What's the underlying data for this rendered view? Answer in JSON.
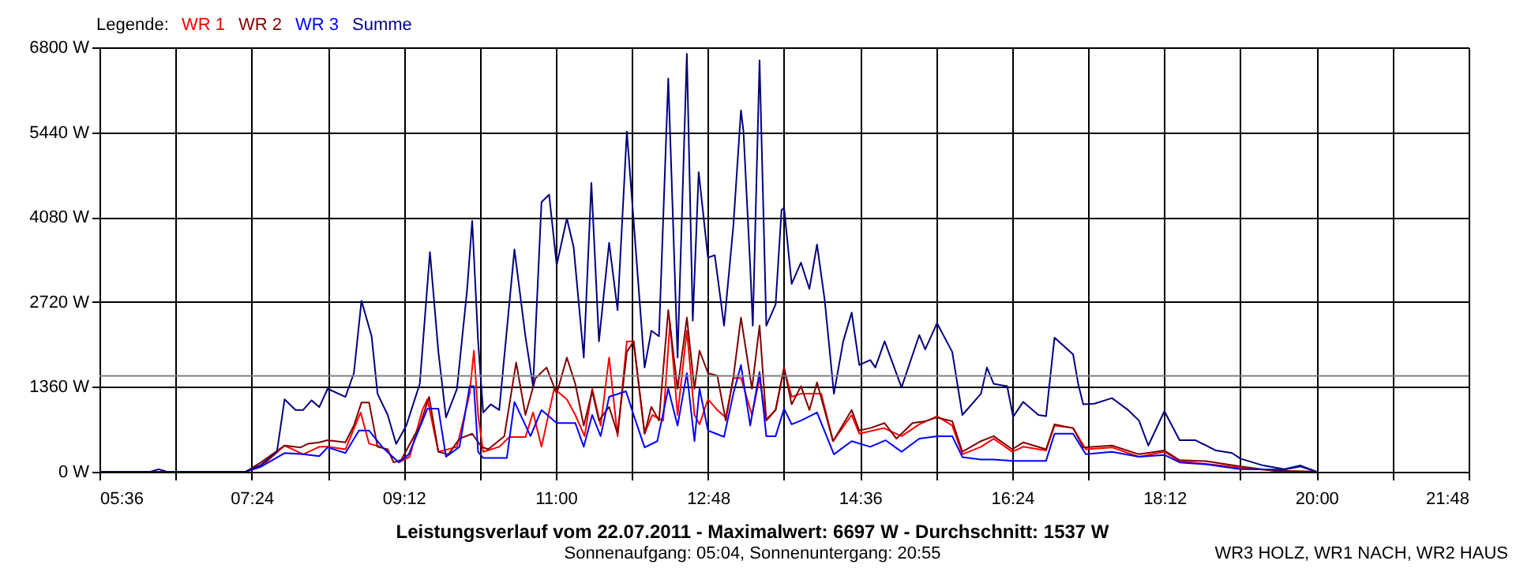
{
  "chart_data": {
    "type": "line",
    "title": "Leistungsverlauf vom 22.07.2011 - Maximalwert: 6697 W - Durchschnitt: 1537 W",
    "subtitle": "Sonnenaufgang: 05:04, Sonnenuntergang: 20:55",
    "legend_title": "Legende:",
    "annotations": [
      "WR3 HOLZ, WR1 NACH, WR2 HAUS"
    ],
    "series": [
      {
        "name": "WR 1",
        "color": "#ff0000",
        "x": [
          5.6,
          7.33,
          7.51,
          7.79,
          8.01,
          8.2,
          8.3,
          8.51,
          8.69,
          8.79,
          8.95,
          9.14,
          9.27,
          9.42,
          9.48,
          9.61,
          9.83,
          9.98,
          10.03,
          10.08,
          10.14,
          10.33,
          10.45,
          10.64,
          10.73,
          10.83,
          10.98,
          11.13,
          11.23,
          11.34,
          11.43,
          11.53,
          11.63,
          11.73,
          11.84,
          11.92,
          12.05,
          12.14,
          12.27,
          12.35,
          12.44,
          12.55,
          12.64,
          12.7,
          12.8,
          12.91,
          13.01,
          13.1,
          13.19,
          13.32,
          13.41,
          13.49,
          13.6,
          13.7,
          13.79,
          13.9,
          14.14,
          14.28,
          14.5,
          14.59,
          14.88,
          15.09,
          15.3,
          15.51,
          15.69,
          15.81,
          16.03,
          16.18,
          16.4,
          16.53,
          16.8,
          16.9,
          17.12,
          17.27,
          17.58,
          17.9,
          18.2,
          18.38,
          18.69,
          19.1,
          19.5,
          20.0
        ],
        "values": [
          0,
          0,
          80,
          420,
          280,
          400,
          400,
          360,
          950,
          450,
          390,
          150,
          240,
          990,
          1160,
          320,
          400,
          1250,
          1940,
          910,
          320,
          400,
          555,
          555,
          950,
          400,
          1330,
          1160,
          910,
          570,
          1330,
          740,
          1830,
          570,
          2090,
          2090,
          610,
          910,
          820,
          2380,
          910,
          2260,
          910,
          760,
          1160,
          990,
          870,
          1500,
          1500,
          910,
          1500,
          840,
          990,
          1650,
          1200,
          1250,
          1250,
          490,
          910,
          610,
          700,
          570,
          760,
          890,
          740,
          280,
          400,
          530,
          320,
          400,
          340,
          740,
          700,
          360,
          390,
          240,
          320,
          170,
          125,
          67,
          17,
          0
        ]
      },
      {
        "name": "WR 2",
        "color": "#800000",
        "x": [
          5.6,
          7.33,
          7.51,
          7.79,
          7.98,
          8.07,
          8.2,
          8.3,
          8.51,
          8.61,
          8.7,
          8.79,
          8.89,
          9.01,
          9.08,
          9.17,
          9.39,
          9.5,
          9.61,
          9.73,
          9.86,
          10.01,
          10.12,
          10.2,
          10.39,
          10.53,
          10.64,
          10.76,
          10.89,
          11.01,
          11.13,
          11.23,
          11.33,
          11.43,
          11.51,
          11.63,
          11.73,
          11.84,
          11.92,
          12.05,
          12.13,
          12.22,
          12.33,
          12.44,
          12.55,
          12.64,
          12.7,
          12.8,
          12.91,
          13.01,
          13.1,
          13.19,
          13.32,
          13.41,
          13.49,
          13.6,
          13.7,
          13.79,
          13.9,
          14.0,
          14.09,
          14.28,
          14.5,
          14.59,
          14.72,
          14.89,
          15.03,
          15.22,
          15.37,
          15.51,
          15.69,
          15.81,
          16.03,
          16.18,
          16.4,
          16.53,
          16.8,
          16.9,
          17.12,
          17.24,
          17.58,
          17.9,
          18.2,
          18.38,
          18.69,
          19.1,
          19.5,
          20.0
        ],
        "values": [
          0,
          0,
          150,
          420,
          390,
          450,
          470,
          505,
          470,
          740,
          1110,
          1110,
          400,
          360,
          150,
          190,
          740,
          1200,
          320,
          280,
          530,
          610,
          400,
          360,
          570,
          1750,
          910,
          1500,
          1670,
          1250,
          1830,
          1410,
          740,
          1290,
          820,
          1040,
          610,
          1920,
          2090,
          610,
          1040,
          820,
          2590,
          1330,
          2470,
          1330,
          1940,
          1580,
          1540,
          820,
          1510,
          2470,
          1330,
          2340,
          820,
          990,
          1670,
          1080,
          1370,
          990,
          1430,
          490,
          990,
          660,
          700,
          780,
          530,
          780,
          810,
          870,
          810,
          320,
          490,
          570,
          360,
          470,
          360,
          760,
          700,
          390,
          420,
          280,
          340,
          185,
          170,
          85,
          17,
          0
        ]
      },
      {
        "name": "WR 3",
        "color": "#0000ff",
        "x": [
          7.33,
          7.51,
          7.79,
          8.01,
          8.2,
          8.3,
          8.51,
          8.67,
          8.79,
          8.95,
          9.14,
          9.26,
          9.48,
          9.61,
          9.7,
          9.86,
          9.98,
          10.03,
          10.08,
          10.14,
          10.42,
          10.51,
          10.7,
          10.83,
          11.01,
          11.23,
          11.33,
          11.43,
          11.53,
          11.63,
          11.83,
          11.92,
          12.05,
          12.2,
          12.33,
          12.44,
          12.55,
          12.64,
          12.7,
          12.8,
          12.99,
          13.1,
          13.19,
          13.3,
          13.41,
          13.49,
          13.6,
          13.7,
          13.79,
          13.9,
          14.09,
          14.29,
          14.5,
          14.72,
          14.9,
          15.09,
          15.3,
          15.51,
          15.69,
          15.81,
          16.03,
          16.18,
          16.4,
          16.8,
          16.9,
          17.12,
          17.27,
          17.58,
          17.9,
          18.2,
          18.38,
          18.69,
          19.1,
          19.62,
          19.81,
          20.0
        ],
        "values": [
          0,
          80,
          300,
          280,
          250,
          390,
          300,
          660,
          660,
          390,
          150,
          280,
          1010,
          1010,
          240,
          400,
          1370,
          1370,
          320,
          220,
          220,
          1120,
          570,
          990,
          780,
          780,
          400,
          910,
          570,
          1200,
          1290,
          910,
          390,
          490,
          1330,
          740,
          1580,
          490,
          1330,
          660,
          560,
          1250,
          1710,
          740,
          1600,
          570,
          570,
          1010,
          760,
          820,
          950,
          280,
          490,
          400,
          505,
          320,
          530,
          570,
          570,
          235,
          195,
          195,
          175,
          175,
          610,
          610,
          280,
          320,
          240,
          270,
          150,
          120,
          42,
          34,
          84,
          0
        ]
      },
      {
        "name": "Summe",
        "color": "#000080",
        "x": [
          5.6,
          6.2,
          6.3,
          6.4,
          7.33,
          7.51,
          7.7,
          7.79,
          7.92,
          8.01,
          8.11,
          8.2,
          8.3,
          8.51,
          8.61,
          8.7,
          8.82,
          8.89,
          9.01,
          9.11,
          9.23,
          9.39,
          9.51,
          9.61,
          9.7,
          9.83,
          9.95,
          10.01,
          10.08,
          10.14,
          10.23,
          10.33,
          10.51,
          10.64,
          10.73,
          10.83,
          10.92,
          11.01,
          11.13,
          11.21,
          11.33,
          11.42,
          11.51,
          11.63,
          11.73,
          11.84,
          11.92,
          12.05,
          12.13,
          12.22,
          12.33,
          12.44,
          12.55,
          12.62,
          12.69,
          12.8,
          12.88,
          12.99,
          13.1,
          13.19,
          13.22,
          13.3,
          13.33,
          13.41,
          13.49,
          13.6,
          13.67,
          13.7,
          13.79,
          13.9,
          14.0,
          14.09,
          14.18,
          14.29,
          14.4,
          14.5,
          14.59,
          14.72,
          14.78,
          14.89,
          15.09,
          15.3,
          15.37,
          15.51,
          15.69,
          15.81,
          16.03,
          16.1,
          16.18,
          16.34,
          16.41,
          16.53,
          16.71,
          16.8,
          16.9,
          17.12,
          17.18,
          17.24,
          17.37,
          17.58,
          17.77,
          17.9,
          18.01,
          18.2,
          18.38,
          18.57,
          18.81,
          19.0,
          19.1,
          19.37,
          19.62,
          19.81,
          20.0
        ],
        "values": [
          0,
          0,
          40,
          0,
          0,
          110,
          320,
          1160,
          990,
          990,
          1145,
          1035,
          1330,
          1200,
          1580,
          2740,
          2170,
          1250,
          910,
          445,
          740,
          1410,
          3520,
          1920,
          870,
          1330,
          2920,
          4020,
          2090,
          950,
          1080,
          990,
          3560,
          2170,
          1370,
          4320,
          4440,
          3310,
          4060,
          3600,
          1830,
          4630,
          2090,
          3670,
          2590,
          5450,
          4020,
          1670,
          2260,
          2170,
          6300,
          1830,
          6697,
          2420,
          4800,
          3430,
          3470,
          2340,
          3940,
          5790,
          5450,
          3270,
          2340,
          6590,
          2340,
          2680,
          4190,
          4230,
          3010,
          3350,
          2930,
          3640,
          2760,
          1250,
          2090,
          2550,
          1710,
          1790,
          1670,
          2090,
          1350,
          2190,
          1960,
          2380,
          1920,
          910,
          1250,
          1670,
          1410,
          1370,
          880,
          1120,
          910,
          890,
          2150,
          1880,
          1410,
          1080,
          1090,
          1180,
          990,
          820,
          420,
          970,
          505,
          505,
          340,
          300,
          210,
          100,
          40,
          100,
          0
        ]
      }
    ],
    "xlim": [
      5.6,
      21.8
    ],
    "xticks": [
      {
        "value": 5.6,
        "label": "05:36"
      },
      {
        "value": 6.5,
        "label": null
      },
      {
        "value": 7.4,
        "label": "07:24"
      },
      {
        "value": 8.3,
        "label": null
      },
      {
        "value": 9.2,
        "label": "09:12"
      },
      {
        "value": 10.1,
        "label": null
      },
      {
        "value": 11.0,
        "label": "11:00"
      },
      {
        "value": 11.9,
        "label": null
      },
      {
        "value": 12.8,
        "label": "12:48"
      },
      {
        "value": 13.7,
        "label": null
      },
      {
        "value": 14.6,
        "label": "14:36"
      },
      {
        "value": 15.5,
        "label": null
      },
      {
        "value": 16.4,
        "label": "16:24"
      },
      {
        "value": 17.3,
        "label": null
      },
      {
        "value": 18.2,
        "label": "18:12"
      },
      {
        "value": 19.1,
        "label": null
      },
      {
        "value": 20.0,
        "label": "20:00"
      },
      {
        "value": 20.9,
        "label": null
      },
      {
        "value": 21.8,
        "label": "21:48"
      }
    ],
    "ylim": [
      0,
      6800
    ],
    "yticks": [
      {
        "value": 0,
        "label": "0 W"
      },
      {
        "value": 1360,
        "label": "1360 W"
      },
      {
        "value": 2720,
        "label": "2720 W"
      },
      {
        "value": 4080,
        "label": "4080 W"
      },
      {
        "value": 5440,
        "label": "5440 W"
      },
      {
        "value": 6800,
        "label": "6800 W"
      }
    ],
    "ref_lines": [
      {
        "axis": "y",
        "value": 1537,
        "color": "#808080"
      }
    ],
    "grid": true,
    "legend": "top left",
    "line_style": "solid",
    "marker": "none"
  }
}
